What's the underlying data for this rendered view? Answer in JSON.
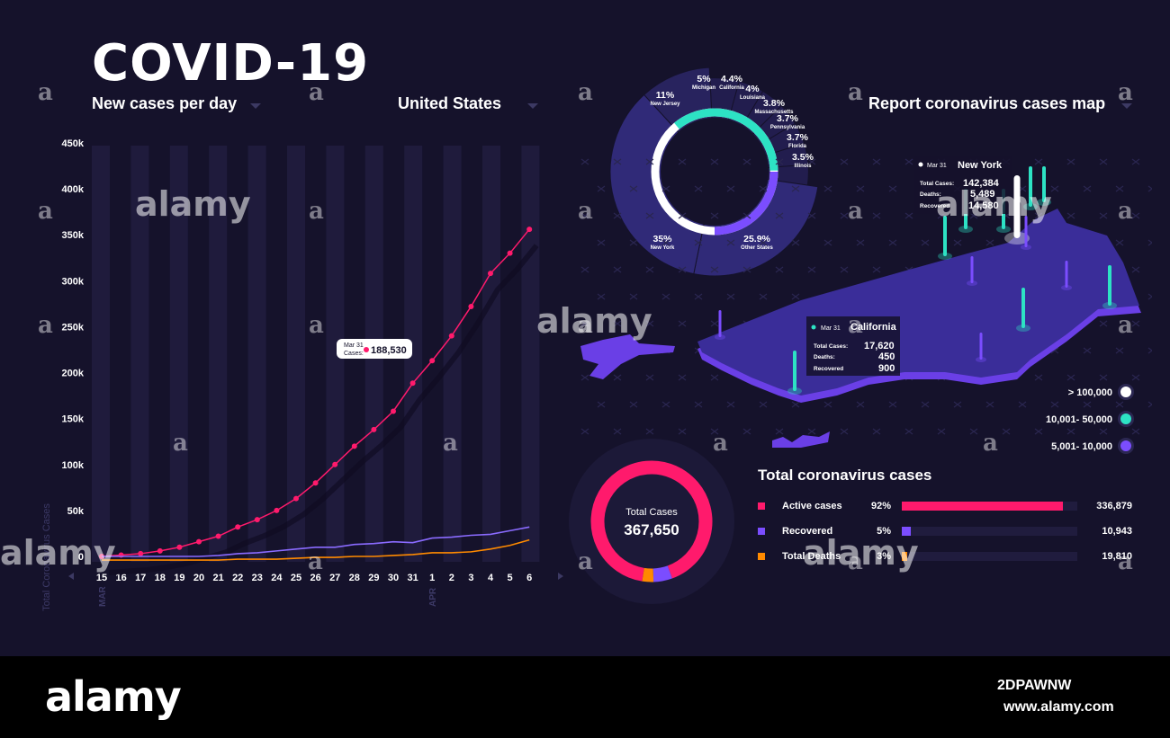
{
  "header": {
    "title": "COVID-19",
    "dropdown_metric": "New cases per day",
    "dropdown_region": "United States",
    "map_title": "Report coronavirus cases map"
  },
  "line_chart": {
    "tooltip_date": "Mar 31",
    "tooltip_label": "Cases:",
    "tooltip_value": "188,530",
    "ylabel": "Total Coronavirus Cases",
    "month_labels": [
      "MAR",
      "APR"
    ]
  },
  "map": {
    "ny_date": "Mar 31",
    "ny_name": "New York",
    "ny_rows": [
      {
        "label": "Total Cases:",
        "value": "142,384"
      },
      {
        "label": "Deaths:",
        "value": "5,489"
      },
      {
        "label": "Recovered",
        "value": "14,580"
      }
    ],
    "ca_date": "Mar 31",
    "ca_name": "California",
    "ca_rows": [
      {
        "label": "Total Cases:",
        "value": "17,620"
      },
      {
        "label": "Deaths:",
        "value": "450"
      },
      {
        "label": "Recovered",
        "value": "900"
      }
    ],
    "legend": [
      {
        "label": "> 100,000",
        "color": "#ffffff"
      },
      {
        "label": "10,001- 50,000",
        "color": "#2de2c4"
      },
      {
        "label": "5,001- 10,000",
        "color": "#7b4dff"
      }
    ]
  },
  "donut_total": {
    "label": "Total Cases",
    "value": "367,650"
  },
  "totals": {
    "title": "Total coronavirus cases",
    "rows": [
      {
        "label": "Active cases",
        "pct": "92%",
        "value": "336,879",
        "fraction": 0.92,
        "color": "#ff1a6c"
      },
      {
        "label": "Recovered",
        "pct": "5%",
        "value": "10,943",
        "fraction": 0.05,
        "color": "#7b4dff"
      },
      {
        "label": "Total Deaths",
        "pct": "3%",
        "value": "19,810",
        "fraction": 0.03,
        "color": "#ff8a00"
      }
    ]
  },
  "watermark": {
    "brand": "alamy",
    "id": "2DPAWNW",
    "url": "www.alamy.com",
    "a": "a"
  },
  "colors": {
    "background": "#15122b",
    "pink": "#ff1a6c",
    "purple": "#7b4dff",
    "teal": "#2de2c4",
    "orange": "#ff8a00"
  },
  "chart_data": [
    {
      "type": "line",
      "title": "New cases per day",
      "ylabel": "Total Coronavirus Cases",
      "xlabel": "",
      "x": [
        "15",
        "16",
        "17",
        "18",
        "19",
        "20",
        "21",
        "22",
        "23",
        "24",
        "25",
        "26",
        "27",
        "28",
        "29",
        "30",
        "31",
        "1",
        "2",
        "3",
        "4",
        "5",
        "6"
      ],
      "yticks": [
        "0",
        "50k",
        "100k",
        "150k",
        "200k",
        "250k",
        "300k",
        "350k",
        "400k",
        "450k"
      ],
      "ylim": [
        0,
        450000
      ],
      "series": [
        {
          "color": "#ff1a6c",
          "values": [
            0,
            1500,
            3000,
            6000,
            10000,
            16000,
            22000,
            32000,
            40000,
            50000,
            63000,
            80000,
            100000,
            120000,
            138000,
            158000,
            188530,
            213000,
            240000,
            272000,
            308000,
            330000,
            356000
          ]
        },
        {
          "color": "#8a6bff",
          "values": [
            0,
            0,
            0,
            0,
            0,
            0,
            1000,
            3000,
            4000,
            6000,
            8000,
            10000,
            10000,
            13000,
            14000,
            16000,
            15000,
            20000,
            21000,
            23000,
            24000,
            28000,
            32000
          ]
        },
        {
          "color": "#ff8a00",
          "values": [
            -4000,
            -4000,
            -4000,
            -4000,
            -4000,
            -4000,
            -4000,
            -3000,
            -3000,
            -3000,
            -2000,
            -1000,
            -1000,
            0,
            0,
            1000,
            2000,
            4000,
            4000,
            5000,
            8000,
            12000,
            18000
          ]
        }
      ]
    },
    {
      "type": "pie",
      "labels": [
        "New York",
        "New Jersey",
        "Michigan",
        "California",
        "Louisiana",
        "Massachusetts",
        "Pennsylvania",
        "Florida",
        "Illinois",
        "Other States"
      ],
      "values": [
        35,
        11,
        5,
        4.4,
        4,
        3.8,
        3.7,
        3.7,
        3.5,
        25.9
      ],
      "value_labels": [
        "35%",
        "11%",
        "5%",
        "4.4%",
        "4%",
        "3.8%",
        "3.7%",
        "3.7%",
        "3.5%",
        "25.9%"
      ]
    },
    {
      "type": "pie",
      "title": "Total Cases",
      "labels": [
        "Active cases",
        "Recovered",
        "Total Deaths"
      ],
      "values": [
        92,
        5,
        3
      ]
    }
  ]
}
